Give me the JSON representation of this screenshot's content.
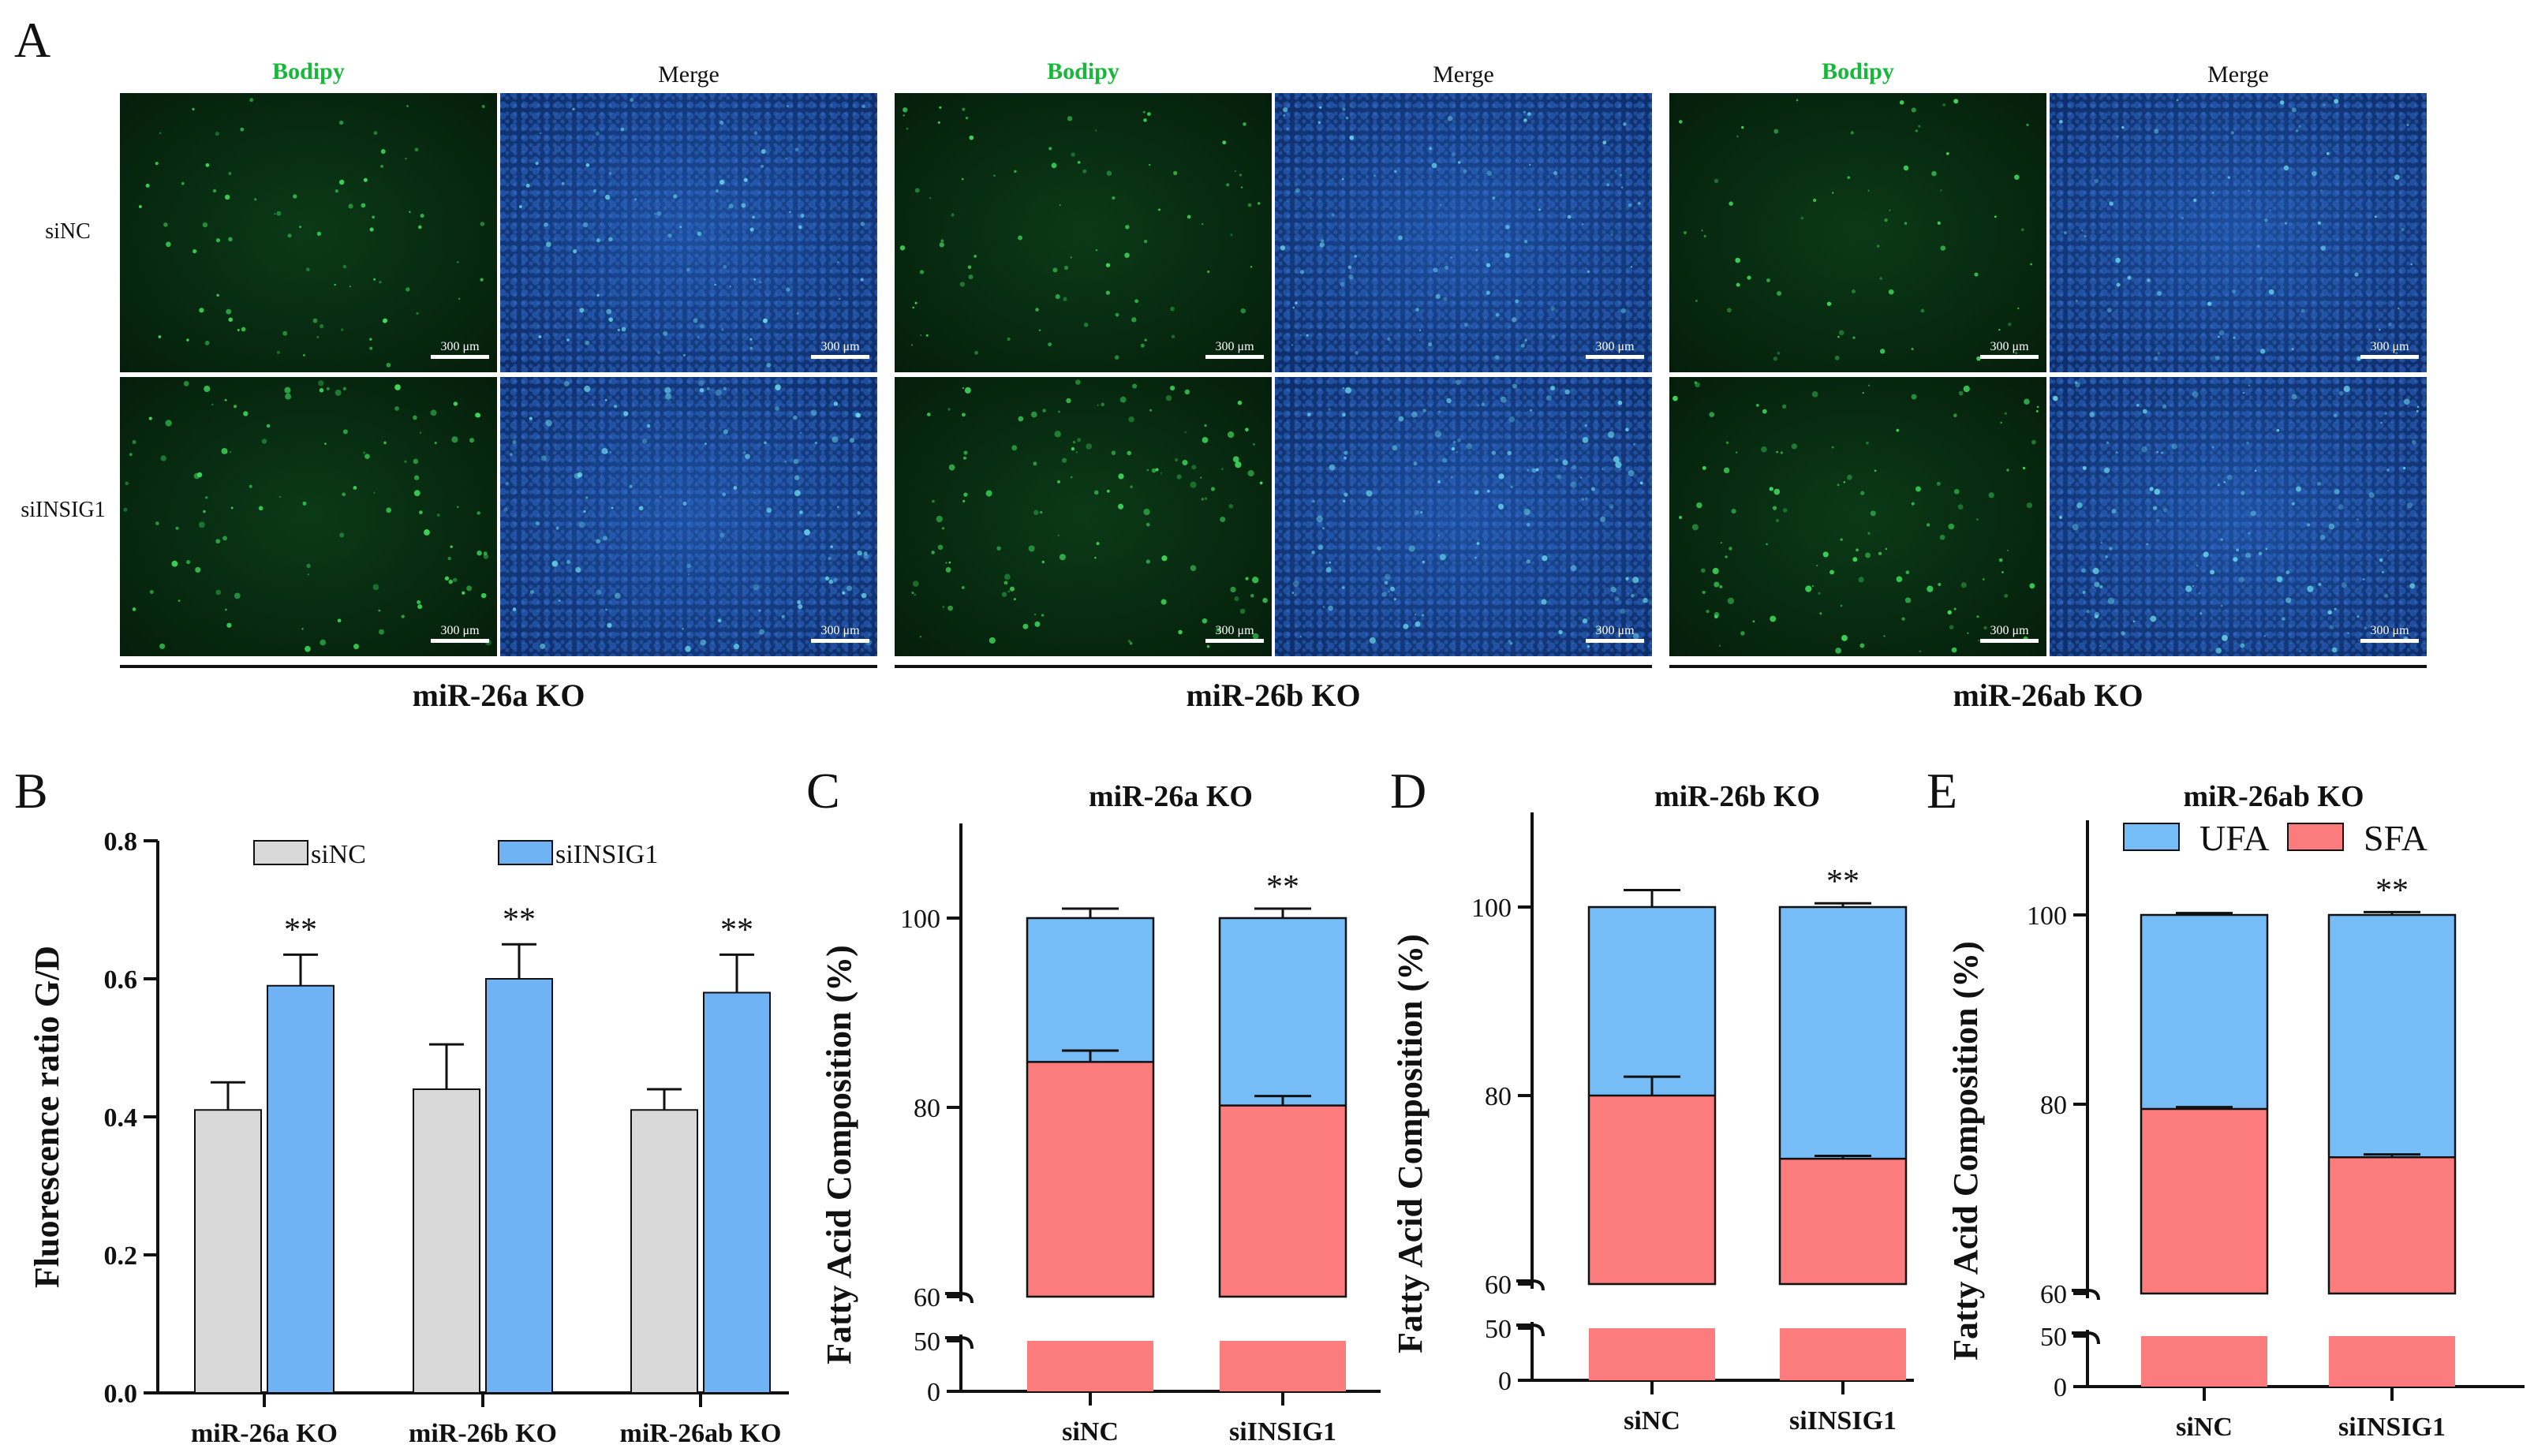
{
  "panel_labels": [
    "A",
    "B",
    "C",
    "D",
    "E"
  ],
  "microscopy": {
    "channels": [
      "Bodipy",
      "Merge"
    ],
    "rows": [
      "siNC",
      "siINSIG1"
    ],
    "groups": [
      "miR-26a KO",
      "miR-26b KO",
      "miR-26ab KO"
    ],
    "scale_bar": "300 μm"
  },
  "colors": {
    "siNC": "#d9d9d9",
    "siINSIG1": "#6fb3f5",
    "UFA": "#76bcf7",
    "SFA": "#fc7b7c",
    "bodipy": "#16b83a"
  },
  "chart_data": [
    {
      "type": "bar",
      "panel": "B",
      "categories": [
        "miR-26a KO",
        "miR-26b KO",
        "miR-26ab KO"
      ],
      "series": [
        {
          "name": "siNC",
          "values": [
            0.41,
            0.44,
            0.41
          ],
          "errors": [
            0.04,
            0.065,
            0.03
          ]
        },
        {
          "name": "siINSIG1",
          "values": [
            0.59,
            0.6,
            0.58
          ],
          "errors": [
            0.045,
            0.05,
            0.055
          ]
        }
      ],
      "significance": [
        "**",
        "**",
        "**"
      ],
      "ylabel": "Fluorescence ratio G/D",
      "ylim": [
        0,
        0.8
      ],
      "yticks": [
        "0.0",
        "0.2",
        "0.4",
        "0.6",
        "0.8"
      ]
    },
    {
      "type": "bar",
      "stacked": true,
      "panel": "C",
      "title": "miR-26a KO",
      "categories": [
        "siNC",
        "siINSIG1"
      ],
      "series": [
        {
          "name": "SFA",
          "values": [
            84.8,
            80.2
          ],
          "errors": [
            1.2,
            1.0
          ]
        },
        {
          "name": "UFA",
          "values": [
            15.2,
            19.8
          ],
          "errors": [
            1.0,
            1.0
          ]
        }
      ],
      "significance": [
        "",
        "**"
      ],
      "ylabel": "Fatty Acid Composition (%)",
      "yticks_upper": [
        "60",
        "80",
        "100"
      ],
      "yticks_lower": [
        "0",
        "50"
      ]
    },
    {
      "type": "bar",
      "stacked": true,
      "panel": "D",
      "title": "miR-26b KO",
      "categories": [
        "siNC",
        "siINSIG1"
      ],
      "series": [
        {
          "name": "SFA",
          "values": [
            80.0,
            73.3
          ],
          "errors": [
            2.0,
            0.3
          ]
        },
        {
          "name": "UFA",
          "values": [
            20.0,
            26.7
          ],
          "errors": [
            1.8,
            0.4
          ]
        }
      ],
      "significance": [
        "",
        "**"
      ],
      "ylabel": "Fatty Acid Composition (%)",
      "yticks_upper": [
        "60",
        "80",
        "100"
      ],
      "yticks_lower": [
        "0",
        "50"
      ]
    },
    {
      "type": "bar",
      "stacked": true,
      "panel": "E",
      "title": "miR-26ab KO",
      "categories": [
        "siNC",
        "siINSIG1"
      ],
      "series": [
        {
          "name": "SFA",
          "values": [
            79.5,
            74.4
          ],
          "errors": [
            0.2,
            0.3
          ]
        },
        {
          "name": "UFA",
          "values": [
            20.5,
            25.6
          ],
          "errors": [
            0.2,
            0.3
          ]
        }
      ],
      "significance": [
        "",
        "**"
      ],
      "ylabel": "Fatty Acid Composition (%)",
      "yticks_upper": [
        "60",
        "80",
        "100"
      ],
      "yticks_lower": [
        "0",
        "50"
      ],
      "legend": [
        "UFA",
        "SFA"
      ]
    }
  ]
}
